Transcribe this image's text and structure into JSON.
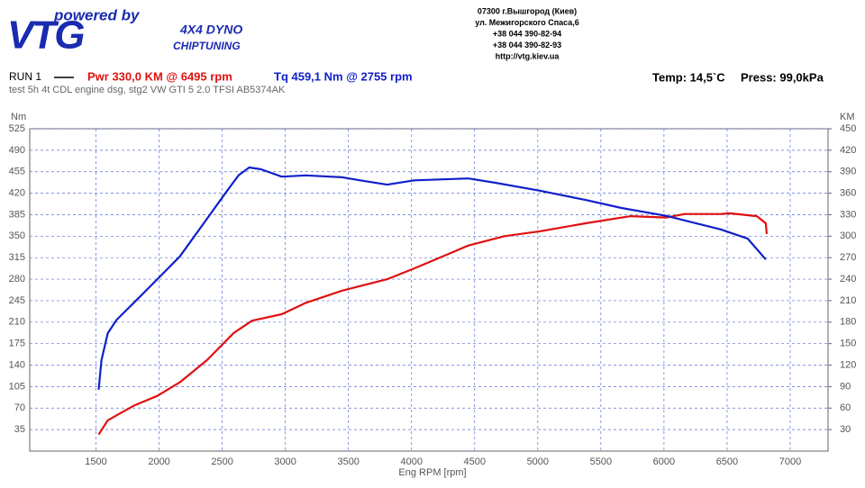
{
  "header": {
    "powered": "powered by",
    "logo": "VTG",
    "dyno": "4X4 DYNO",
    "chiptuning": "CHIPTUNING",
    "address": [
      "07300 г.Вышгород (Киев)",
      "ул. Межигорского Спаса,6",
      "+38 044 390-82-94",
      "+38 044 390-82-93",
      "http://vtg.kiev.ua"
    ],
    "run": "RUN 1",
    "temp": "Temp: 14,5`C",
    "press": "Press: 99,0kPa",
    "test": "test  5h 4t  CDL engine dsg, stg2 VW GTI 5 2.0 TFSI AB5374AK"
  },
  "chart_data": {
    "type": "line",
    "x_label": "Eng RPM [rpm]",
    "y_label": "Nm",
    "y2_label": "KM",
    "xlim": [
      975,
      7300
    ],
    "xticks": [
      1500,
      2000,
      2500,
      3000,
      3500,
      4000,
      4500,
      5000,
      5500,
      6000,
      6500,
      7000
    ],
    "ylim": [
      0,
      525
    ],
    "yticks": [
      35,
      70,
      105,
      140,
      175,
      210,
      245,
      280,
      315,
      350,
      385,
      420,
      455,
      490,
      525
    ],
    "y2lim": [
      0,
      450
    ],
    "y2ticks": [
      30,
      60,
      90,
      120,
      150,
      180,
      210,
      240,
      270,
      300,
      330,
      360,
      390,
      420,
      450
    ],
    "grid": true,
    "series": [
      {
        "name": "Pwr  330,0 KM @ 6495 rpm",
        "color": "#e01010",
        "axis": "y2",
        "x": [
          1521,
          1593,
          1807,
          1986,
          2164,
          2379,
          2593,
          2736,
          2971,
          3164,
          3450,
          3807,
          4021,
          4450,
          4736,
          5021,
          5379,
          5736,
          6021,
          6164,
          6450,
          6521,
          6736,
          6807,
          6814
        ],
        "values": [
          23,
          43,
          64,
          77,
          96,
          127,
          165,
          182,
          191,
          207,
          224,
          240,
          255,
          287,
          300,
          307,
          318,
          328,
          326,
          331,
          331,
          332,
          328,
          318,
          303
        ]
      },
      {
        "name": "Tq 459,1 Nm @ 2755 rpm",
        "color": "#1020c8",
        "x": [
          1521,
          1543,
          1593,
          1664,
          1807,
          1986,
          2164,
          2343,
          2521,
          2629,
          2714,
          2807,
          2971,
          3164,
          3450,
          3593,
          3807,
          4021,
          4450,
          4664,
          5021,
          5379,
          5664,
          6021,
          6450,
          6664,
          6807
        ],
        "values": [
          100,
          148,
          192,
          214,
          243,
          280,
          317,
          368,
          419,
          449,
          462,
          459,
          447,
          449,
          446,
          441,
          434,
          441,
          444,
          437,
          424,
          409,
          396,
          383,
          361,
          346,
          312
        ]
      }
    ]
  }
}
